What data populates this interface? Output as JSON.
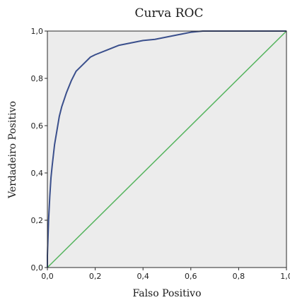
{
  "chart_data": {
    "type": "line",
    "title": "Curva ROC",
    "xlabel": "Falso Positivo",
    "ylabel": "Verdadeiro Positivo",
    "xlim": [
      0,
      1
    ],
    "ylim": [
      0,
      1
    ],
    "grid": false,
    "x_ticks": [
      "0,0",
      "0,2",
      "0,4",
      "0,6",
      "0,8",
      "1,0"
    ],
    "y_ticks": [
      "0,0",
      "0,2",
      "0,4",
      "0,6",
      "0,8",
      "1,0"
    ],
    "background_color": "#ececec",
    "series": [
      {
        "color": "#3a4f8c",
        "x": [
          0.0,
          0.0,
          0.005,
          0.01,
          0.015,
          0.02,
          0.03,
          0.04,
          0.05,
          0.06,
          0.07,
          0.08,
          0.1,
          0.12,
          0.15,
          0.18,
          0.2,
          0.25,
          0.3,
          0.35,
          0.4,
          0.45,
          0.5,
          0.55,
          0.6,
          0.65,
          0.7,
          0.8,
          0.9,
          1.0
        ],
        "y": [
          0.0,
          0.05,
          0.2,
          0.3,
          0.38,
          0.43,
          0.52,
          0.58,
          0.64,
          0.68,
          0.71,
          0.74,
          0.79,
          0.83,
          0.86,
          0.89,
          0.9,
          0.92,
          0.94,
          0.95,
          0.96,
          0.965,
          0.975,
          0.985,
          0.995,
          1.0,
          1.0,
          1.0,
          1.0,
          1.0
        ]
      },
      {
        "color": "#55b45e",
        "x": [
          0,
          1
        ],
        "y": [
          0,
          1
        ]
      }
    ]
  }
}
